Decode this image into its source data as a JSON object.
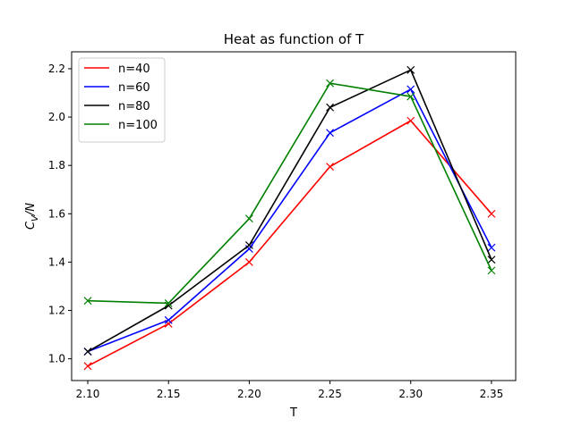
{
  "chart_data": {
    "type": "line",
    "title": "Heat as function of T",
    "xlabel": "T",
    "ylabel_main": "C",
    "ylabel_sub": "V",
    "ylabel_tail": "/N",
    "xlim": [
      2.09,
      2.365
    ],
    "ylim": [
      0.91,
      2.27
    ],
    "x_ticks": [
      2.1,
      2.15,
      2.2,
      2.25,
      2.3,
      2.35
    ],
    "x_tick_labels": [
      "2.10",
      "2.15",
      "2.20",
      "2.25",
      "2.30",
      "2.35"
    ],
    "y_ticks": [
      1.0,
      1.2,
      1.4,
      1.6,
      1.8,
      2.0,
      2.2
    ],
    "y_tick_labels": [
      "1.0",
      "1.2",
      "1.4",
      "1.6",
      "1.8",
      "2.0",
      "2.2"
    ],
    "grid": false,
    "legend_position": "top-left",
    "marker": "x",
    "x": [
      2.1,
      2.15,
      2.2,
      2.25,
      2.3,
      2.35
    ],
    "series": [
      {
        "name": "n=40",
        "color": "#ff0000",
        "values": [
          0.97,
          1.145,
          1.4,
          1.795,
          1.985,
          1.6
        ]
      },
      {
        "name": "n=60",
        "color": "#0000ff",
        "values": [
          1.03,
          1.16,
          1.455,
          1.935,
          2.115,
          1.46
        ]
      },
      {
        "name": "n=80",
        "color": "#000000",
        "values": [
          1.03,
          1.22,
          1.47,
          2.04,
          2.195,
          1.41
        ]
      },
      {
        "name": "n=100",
        "color": "#008000",
        "values": [
          1.24,
          1.23,
          1.58,
          2.14,
          2.085,
          1.365
        ]
      }
    ]
  }
}
